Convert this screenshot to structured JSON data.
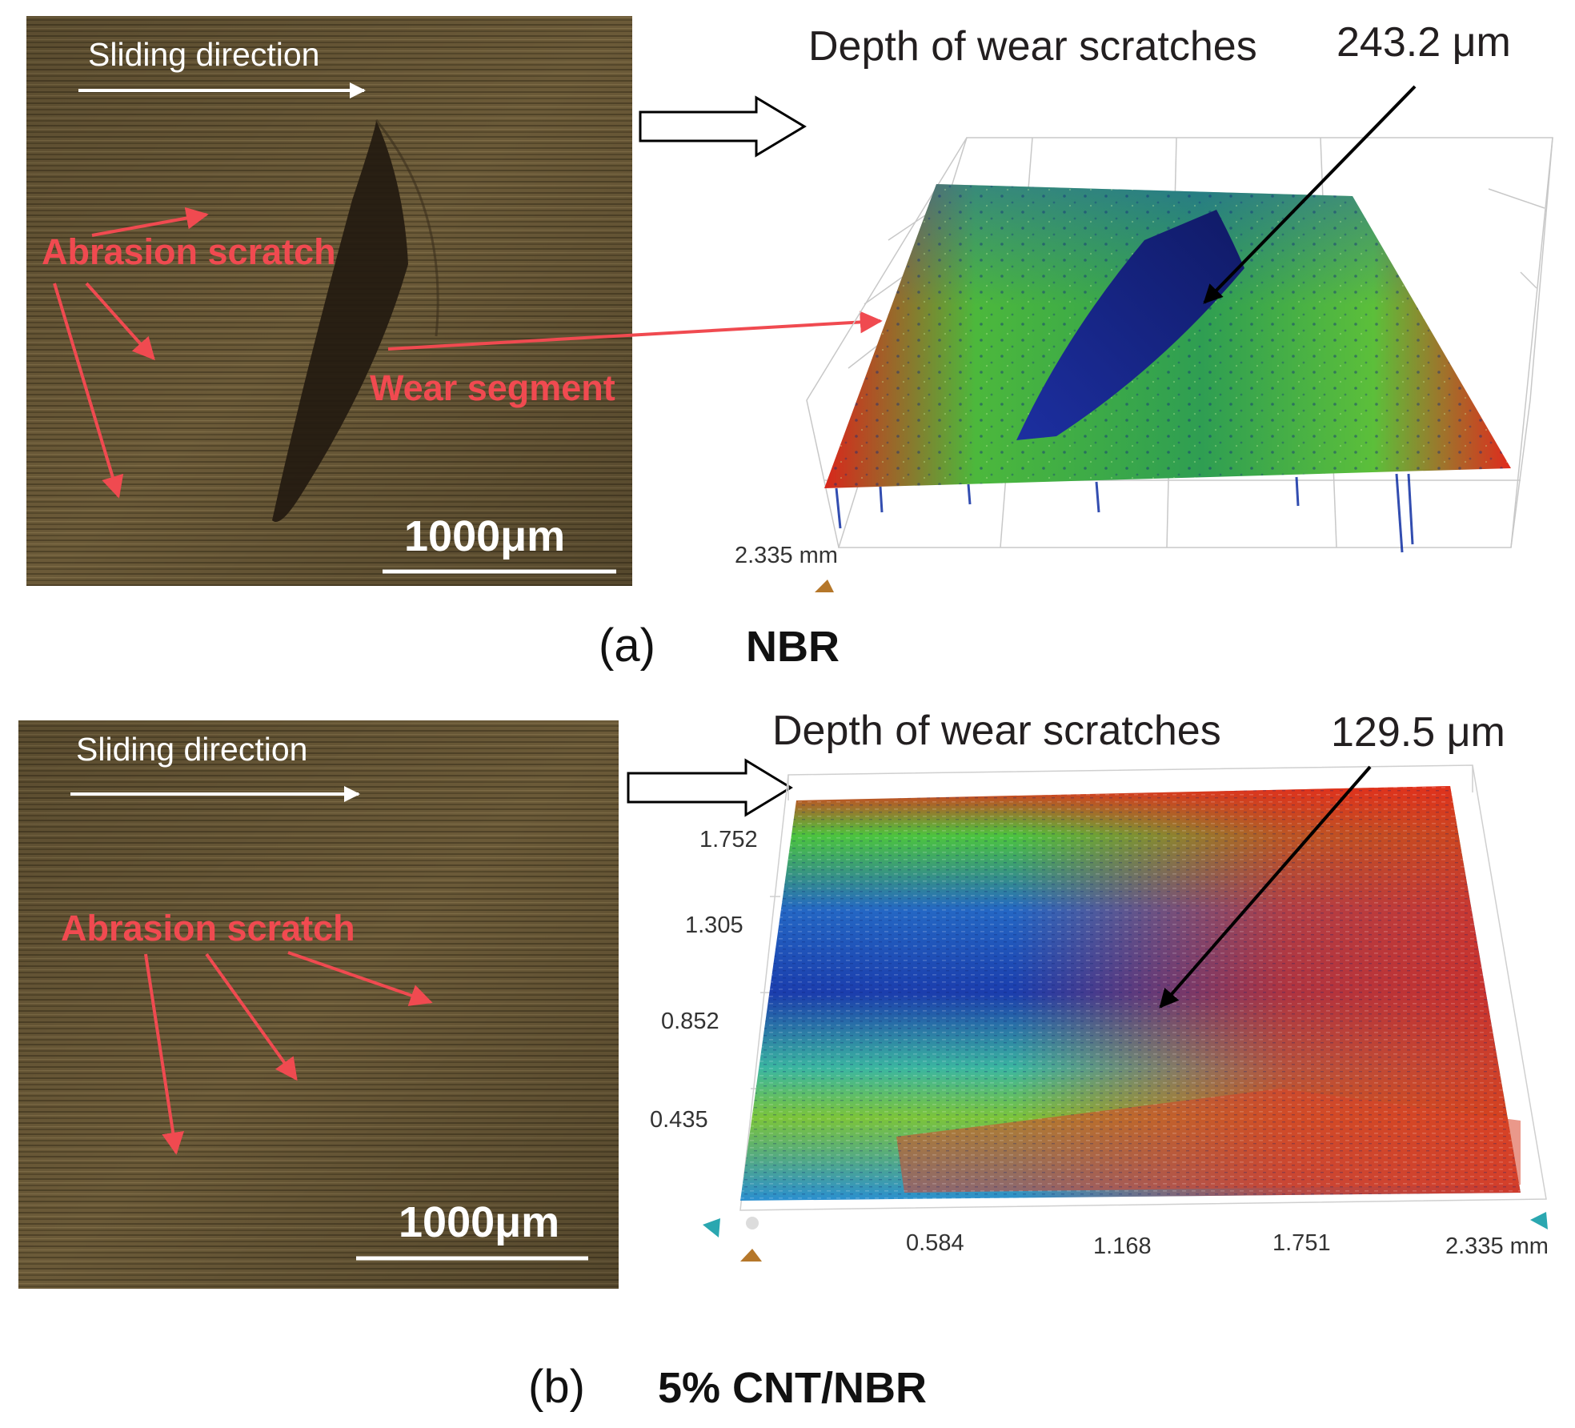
{
  "panel_a": {
    "photo": {
      "sliding_direction": "Sliding direction",
      "abrasion_label": "Abrasion scratch",
      "wear_label": "Wear segment",
      "scale_bar": "1000μm"
    },
    "profile": {
      "depth_title": "Depth of wear scratches",
      "depth_value": "243.2 μm",
      "axis_label": "2.335 mm"
    },
    "caption_letter": "(a)",
    "caption_material": "NBR"
  },
  "panel_b": {
    "photo": {
      "sliding_direction": "Sliding direction",
      "abrasion_label": "Abrasion scratch",
      "scale_bar": "1000μm"
    },
    "profile": {
      "depth_title": "Depth of wear scratches",
      "depth_value": "129.5 μm",
      "y_ticks": [
        "1.752",
        "1.305",
        "0.852",
        "0.435"
      ],
      "x_ticks": [
        "0.584",
        "1.168",
        "1.751",
        "2.335 mm"
      ]
    },
    "caption_letter": "(b)",
    "caption_material": "5% CNT/NBR"
  },
  "colors": {
    "annotation_red": "#f04a50",
    "photo_brown": "#6e5e3c",
    "surface_high": "#e0241b",
    "surface_mid": "#3fb53a",
    "surface_low": "#1d3fb0"
  }
}
